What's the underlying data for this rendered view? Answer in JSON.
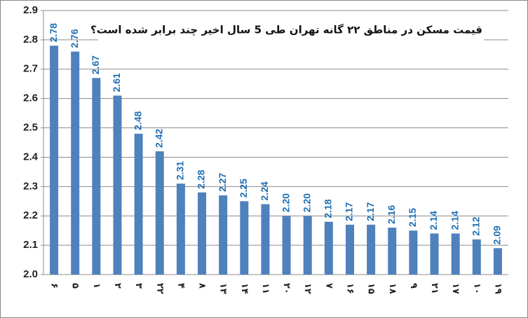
{
  "chart_data": {
    "type": "bar",
    "title": "قیمت مسکن در مناطق ۲۲ گانه تهران طی 5 سال اخیر چند برابر شده است؟",
    "categories": [
      "۶",
      "۵",
      "۱",
      "۲",
      "۳",
      "۲۲",
      "۴",
      "۸",
      "۱۳",
      "۱۴",
      "۱۱",
      "۲۰",
      "۱۲",
      "۷",
      "۱۶",
      "۱۵",
      "۱۸",
      "۹",
      "۲۱",
      "۱۷",
      "۱۰",
      "۱۹"
    ],
    "values": [
      2.78,
      2.76,
      2.67,
      2.61,
      2.48,
      2.42,
      2.31,
      2.28,
      2.27,
      2.25,
      2.24,
      2.2,
      2.2,
      2.18,
      2.17,
      2.17,
      2.16,
      2.15,
      2.14,
      2.14,
      2.12,
      2.09
    ],
    "value_labels": [
      "2.78",
      "2.76",
      "2.67",
      "2.61",
      "2.48",
      "2.42",
      "2.31",
      "2.28",
      "2.27",
      "2.25",
      "2.24",
      "2.20",
      "2.20",
      "2.18",
      "2.17",
      "2.17",
      "2.16",
      "2.15",
      "2.14",
      "2.14",
      "2.12",
      "2.09"
    ],
    "color": "#4f81bd",
    "label_color": "#1f6fb5",
    "ylim": [
      2,
      2.9
    ],
    "yticks": [
      {
        "value": 2,
        "label": "2.0"
      },
      2.1,
      2.2,
      2.3,
      2.4,
      2.5,
      2.6,
      2.7,
      2.8,
      2.9
    ],
    "grid": true
  }
}
